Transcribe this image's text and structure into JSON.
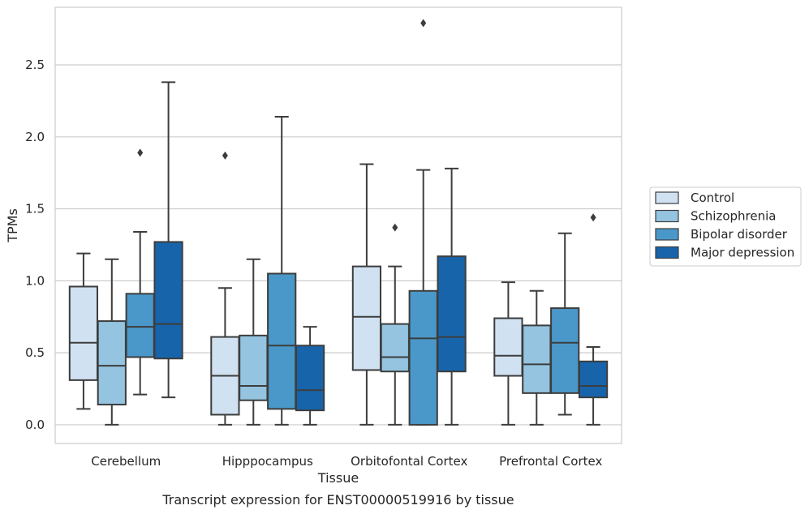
{
  "chart_data": {
    "type": "box",
    "xlabel": "Tissue",
    "ylabel": "TPMs",
    "caption": "Transcript expression for ENST00000519916 by tissue",
    "ylim": [
      -0.13,
      2.9
    ],
    "yticks": [
      0.0,
      0.5,
      1.0,
      1.5,
      2.0,
      2.5
    ],
    "ytick_labels": [
      "0.0",
      "0.5",
      "1.0",
      "1.5",
      "2.0",
      "2.5"
    ],
    "grid": "horizontal",
    "legend_position": "right",
    "categories": [
      "Cerebellum",
      "Hipppocampus",
      "Orbitofontal Cortex",
      "Prefrontal Cortex"
    ],
    "series": [
      {
        "name": "Control",
        "color": "#d0e1f2",
        "boxes": [
          {
            "whisker_low": 0.11,
            "q1": 0.31,
            "median": 0.57,
            "q3": 0.96,
            "whisker_high": 1.19,
            "outliers": []
          },
          {
            "whisker_low": 0.0,
            "q1": 0.07,
            "median": 0.34,
            "q3": 0.61,
            "whisker_high": 0.95,
            "outliers": [
              1.87
            ]
          },
          {
            "whisker_low": 0.0,
            "q1": 0.38,
            "median": 0.75,
            "q3": 1.1,
            "whisker_high": 1.81,
            "outliers": []
          },
          {
            "whisker_low": 0.0,
            "q1": 0.34,
            "median": 0.48,
            "q3": 0.74,
            "whisker_high": 0.99,
            "outliers": []
          }
        ]
      },
      {
        "name": "Schizophrenia",
        "color": "#94c4df",
        "boxes": [
          {
            "whisker_low": 0.0,
            "q1": 0.14,
            "median": 0.41,
            "q3": 0.72,
            "whisker_high": 1.15,
            "outliers": []
          },
          {
            "whisker_low": 0.0,
            "q1": 0.17,
            "median": 0.27,
            "q3": 0.62,
            "whisker_high": 1.15,
            "outliers": []
          },
          {
            "whisker_low": 0.0,
            "q1": 0.37,
            "median": 0.47,
            "q3": 0.7,
            "whisker_high": 1.1,
            "outliers": [
              1.37
            ]
          },
          {
            "whisker_low": 0.0,
            "q1": 0.22,
            "median": 0.42,
            "q3": 0.69,
            "whisker_high": 0.93,
            "outliers": []
          }
        ]
      },
      {
        "name": "Bipolar disorder",
        "color": "#4a98c9",
        "boxes": [
          {
            "whisker_low": 0.21,
            "q1": 0.47,
            "median": 0.68,
            "q3": 0.91,
            "whisker_high": 1.34,
            "outliers": [
              1.89
            ]
          },
          {
            "whisker_low": 0.0,
            "q1": 0.11,
            "median": 0.55,
            "q3": 1.05,
            "whisker_high": 2.14,
            "outliers": []
          },
          {
            "whisker_low": 0.0,
            "q1": 0.0,
            "median": 0.6,
            "q3": 0.93,
            "whisker_high": 1.77,
            "outliers": [
              2.79
            ]
          },
          {
            "whisker_low": 0.07,
            "q1": 0.22,
            "median": 0.57,
            "q3": 0.81,
            "whisker_high": 1.33,
            "outliers": []
          }
        ]
      },
      {
        "name": "Major depression",
        "color": "#1764ab",
        "boxes": [
          {
            "whisker_low": 0.19,
            "q1": 0.46,
            "median": 0.7,
            "q3": 1.27,
            "whisker_high": 2.38,
            "outliers": []
          },
          {
            "whisker_low": 0.0,
            "q1": 0.1,
            "median": 0.24,
            "q3": 0.55,
            "whisker_high": 0.68,
            "outliers": []
          },
          {
            "whisker_low": 0.0,
            "q1": 0.37,
            "median": 0.61,
            "q3": 1.17,
            "whisker_high": 1.78,
            "outliers": []
          },
          {
            "whisker_low": 0.0,
            "q1": 0.19,
            "median": 0.27,
            "q3": 0.44,
            "whisker_high": 0.54,
            "outliers": [
              1.44
            ]
          }
        ]
      }
    ]
  }
}
